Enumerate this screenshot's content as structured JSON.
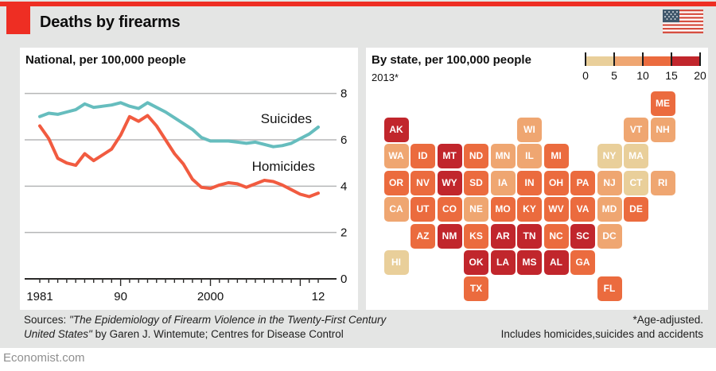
{
  "header": {
    "title": "Deaths by firearms"
  },
  "footer": {
    "sources_prefix": "Sources: ",
    "sources_italic_line1": "\"The Epidemiology of Firearm Violence in the Twenty-First Century",
    "sources_italic_line2": "United States\"",
    "sources_rest_line2": " by Garen J. Wintemute; Centres for Disease Control",
    "note_line1": "*Age-adjusted.",
    "note_line2": "Includes homicides,suicides and accidents",
    "brand": "Economist.com"
  },
  "chart_data": [
    {
      "type": "line",
      "title": "National, per 100,000 people",
      "x_start": 1981,
      "x_end": 2012,
      "x_tick_labels": [
        {
          "x": 1981,
          "label": "1981"
        },
        {
          "x": 1990,
          "label": "90"
        },
        {
          "x": 2000,
          "label": "2000"
        },
        {
          "x": 2012,
          "label": "12"
        }
      ],
      "y_ticks": [
        0,
        2,
        4,
        6,
        8
      ],
      "ylim": [
        0,
        8.8
      ],
      "grid": true,
      "series": [
        {
          "name": "Suicides",
          "color": "#66bdbe",
          "values": [
            7.0,
            7.15,
            7.1,
            7.2,
            7.3,
            7.55,
            7.4,
            7.45,
            7.5,
            7.6,
            7.45,
            7.35,
            7.6,
            7.4,
            7.2,
            6.95,
            6.7,
            6.45,
            6.1,
            5.95,
            5.95,
            5.95,
            5.9,
            5.85,
            5.9,
            5.8,
            5.7,
            5.75,
            5.85,
            6.05,
            6.25,
            6.55
          ]
        },
        {
          "name": "Homicides",
          "color": "#f15b40",
          "values": [
            6.6,
            6.05,
            5.2,
            5.0,
            4.9,
            5.4,
            5.1,
            5.35,
            5.6,
            6.2,
            7.0,
            6.8,
            7.05,
            6.6,
            6.0,
            5.4,
            4.95,
            4.3,
            3.95,
            3.9,
            4.05,
            4.15,
            4.1,
            3.95,
            4.1,
            4.25,
            4.2,
            4.05,
            3.85,
            3.65,
            3.55,
            3.7
          ]
        }
      ]
    },
    {
      "type": "heatmap",
      "title": "By state, per 100,000 people",
      "subtitle": "2013*",
      "legend": {
        "stops": [
          "0",
          "5",
          "10",
          "15",
          "20"
        ],
        "colors": [
          "#e9cf9a",
          "#efa671",
          "#eb6b3e",
          "#c1262c"
        ],
        "bucket_labels": [
          "0-5",
          "5-10",
          "10-15",
          "15-20"
        ]
      },
      "states": [
        {
          "abbr": "ME",
          "row": 0,
          "col": 10,
          "level": 2
        },
        {
          "abbr": "AK",
          "row": 1,
          "col": 0,
          "level": 3
        },
        {
          "abbr": "WI",
          "row": 1,
          "col": 5,
          "level": 1
        },
        {
          "abbr": "VT",
          "row": 1,
          "col": 9,
          "level": 1
        },
        {
          "abbr": "NH",
          "row": 1,
          "col": 10,
          "level": 1
        },
        {
          "abbr": "WA",
          "row": 2,
          "col": 0,
          "level": 1
        },
        {
          "abbr": "ID",
          "row": 2,
          "col": 1,
          "level": 2
        },
        {
          "abbr": "MT",
          "row": 2,
          "col": 2,
          "level": 3
        },
        {
          "abbr": "ND",
          "row": 2,
          "col": 3,
          "level": 2
        },
        {
          "abbr": "MN",
          "row": 2,
          "col": 4,
          "level": 1
        },
        {
          "abbr": "IL",
          "row": 2,
          "col": 5,
          "level": 1
        },
        {
          "abbr": "MI",
          "row": 2,
          "col": 6,
          "level": 2
        },
        {
          "abbr": "NY",
          "row": 2,
          "col": 8,
          "level": 0
        },
        {
          "abbr": "MA",
          "row": 2,
          "col": 9,
          "level": 0
        },
        {
          "abbr": "OR",
          "row": 3,
          "col": 0,
          "level": 2
        },
        {
          "abbr": "NV",
          "row": 3,
          "col": 1,
          "level": 2
        },
        {
          "abbr": "WY",
          "row": 3,
          "col": 2,
          "level": 3
        },
        {
          "abbr": "SD",
          "row": 3,
          "col": 3,
          "level": 2
        },
        {
          "abbr": "IA",
          "row": 3,
          "col": 4,
          "level": 1
        },
        {
          "abbr": "IN",
          "row": 3,
          "col": 5,
          "level": 2
        },
        {
          "abbr": "OH",
          "row": 3,
          "col": 6,
          "level": 2
        },
        {
          "abbr": "PA",
          "row": 3,
          "col": 7,
          "level": 2
        },
        {
          "abbr": "NJ",
          "row": 3,
          "col": 8,
          "level": 1
        },
        {
          "abbr": "CT",
          "row": 3,
          "col": 9,
          "level": 0
        },
        {
          "abbr": "RI",
          "row": 3,
          "col": 10,
          "level": 1
        },
        {
          "abbr": "CA",
          "row": 4,
          "col": 0,
          "level": 1
        },
        {
          "abbr": "UT",
          "row": 4,
          "col": 1,
          "level": 2
        },
        {
          "abbr": "CO",
          "row": 4,
          "col": 2,
          "level": 2
        },
        {
          "abbr": "NE",
          "row": 4,
          "col": 3,
          "level": 1
        },
        {
          "abbr": "MO",
          "row": 4,
          "col": 4,
          "level": 2
        },
        {
          "abbr": "KY",
          "row": 4,
          "col": 5,
          "level": 2
        },
        {
          "abbr": "WV",
          "row": 4,
          "col": 6,
          "level": 2
        },
        {
          "abbr": "VA",
          "row": 4,
          "col": 7,
          "level": 2
        },
        {
          "abbr": "MD",
          "row": 4,
          "col": 8,
          "level": 1
        },
        {
          "abbr": "DE",
          "row": 4,
          "col": 9,
          "level": 2
        },
        {
          "abbr": "AZ",
          "row": 5,
          "col": 1,
          "level": 2
        },
        {
          "abbr": "NM",
          "row": 5,
          "col": 2,
          "level": 3
        },
        {
          "abbr": "KS",
          "row": 5,
          "col": 3,
          "level": 2
        },
        {
          "abbr": "AR",
          "row": 5,
          "col": 4,
          "level": 3
        },
        {
          "abbr": "TN",
          "row": 5,
          "col": 5,
          "level": 3
        },
        {
          "abbr": "NC",
          "row": 5,
          "col": 6,
          "level": 2
        },
        {
          "abbr": "SC",
          "row": 5,
          "col": 7,
          "level": 3
        },
        {
          "abbr": "DC",
          "row": 5,
          "col": 8,
          "level": 1
        },
        {
          "abbr": "HI",
          "row": 6,
          "col": 0,
          "level": 0
        },
        {
          "abbr": "OK",
          "row": 6,
          "col": 3,
          "level": 3
        },
        {
          "abbr": "LA",
          "row": 6,
          "col": 4,
          "level": 3
        },
        {
          "abbr": "MS",
          "row": 6,
          "col": 5,
          "level": 3
        },
        {
          "abbr": "AL",
          "row": 6,
          "col": 6,
          "level": 3
        },
        {
          "abbr": "GA",
          "row": 6,
          "col": 7,
          "level": 2
        },
        {
          "abbr": "TX",
          "row": 7,
          "col": 3,
          "level": 2
        },
        {
          "abbr": "FL",
          "row": 7,
          "col": 8,
          "level": 2
        }
      ]
    }
  ],
  "colors": {
    "accent_red": "#ee2e23",
    "background": "#e4e5e4",
    "gridline": "#b5b6b7",
    "axis": "#2b2a29"
  }
}
